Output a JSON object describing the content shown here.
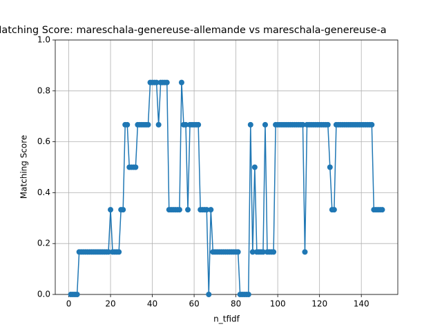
{
  "chart_data": {
    "type": "line",
    "title": "Matching Score: mareschala-genereuse-allemande vs mareschala-genereuse-a",
    "xlabel": "n_tfidf",
    "ylabel": "Matching Score",
    "x": [
      1,
      2,
      3,
      4,
      5,
      6,
      7,
      8,
      9,
      10,
      11,
      12,
      13,
      14,
      15,
      16,
      17,
      18,
      19,
      20,
      21,
      22,
      23,
      24,
      25,
      26,
      27,
      28,
      29,
      30,
      31,
      32,
      33,
      34,
      35,
      36,
      37,
      38,
      39,
      40,
      41,
      42,
      43,
      44,
      45,
      46,
      47,
      48,
      49,
      50,
      51,
      52,
      53,
      54,
      55,
      56,
      57,
      58,
      59,
      60,
      61,
      62,
      63,
      64,
      65,
      66,
      67,
      68,
      69,
      70,
      71,
      72,
      73,
      74,
      75,
      76,
      77,
      78,
      79,
      80,
      81,
      82,
      83,
      84,
      85,
      86,
      87,
      88,
      89,
      90,
      91,
      92,
      93,
      94,
      95,
      96,
      97,
      98,
      99,
      100,
      101,
      102,
      103,
      104,
      105,
      106,
      107,
      108,
      109,
      110,
      111,
      112,
      113,
      114,
      115,
      116,
      117,
      118,
      119,
      120,
      121,
      122,
      123,
      124,
      125,
      126,
      127,
      128,
      129,
      130,
      131,
      132,
      133,
      134,
      135,
      136,
      137,
      138,
      139,
      140,
      141,
      142,
      143,
      144,
      145,
      146,
      147,
      148,
      149,
      150
    ],
    "series": [
      {
        "color": "#1f77b4",
        "values": [
          0,
          0,
          0,
          0,
          0.167,
          0.167,
          0.167,
          0.167,
          0.167,
          0.167,
          0.167,
          0.167,
          0.167,
          0.167,
          0.167,
          0.167,
          0.167,
          0.167,
          0.167,
          0.333,
          0.167,
          0.167,
          0.167,
          0.167,
          0.333,
          0.333,
          0.667,
          0.667,
          0.5,
          0.5,
          0.5,
          0.5,
          0.667,
          0.667,
          0.667,
          0.667,
          0.667,
          0.667,
          0.833,
          0.833,
          0.833,
          0.833,
          0.667,
          0.833,
          0.833,
          0.833,
          0.833,
          0.333,
          0.333,
          0.333,
          0.333,
          0.333,
          0.333,
          0.833,
          0.667,
          0.667,
          0.333,
          0.667,
          0.667,
          0.667,
          0.667,
          0.667,
          0.333,
          0.333,
          0.333,
          0.333,
          0,
          0.333,
          0.167,
          0.167,
          0.167,
          0.167,
          0.167,
          0.167,
          0.167,
          0.167,
          0.167,
          0.167,
          0.167,
          0.167,
          0.167,
          0,
          0,
          0,
          0,
          0,
          0.667,
          0.167,
          0.5,
          0.167,
          0.167,
          0.167,
          0.167,
          0.667,
          0.167,
          0.167,
          0.167,
          0.167,
          0.667,
          0.667,
          0.667,
          0.667,
          0.667,
          0.667,
          0.667,
          0.667,
          0.667,
          0.667,
          0.667,
          0.667,
          0.667,
          0.667,
          0.167,
          0.667,
          0.667,
          0.667,
          0.667,
          0.667,
          0.667,
          0.667,
          0.667,
          0.667,
          0.667,
          0.667,
          0.5,
          0.333,
          0.333,
          0.667,
          0.667,
          0.667,
          0.667,
          0.667,
          0.667,
          0.667,
          0.667,
          0.667,
          0.667,
          0.667,
          0.667,
          0.667,
          0.667,
          0.667,
          0.667,
          0.667,
          0.667,
          0.333,
          0.333,
          0.333,
          0.333,
          0.333
        ]
      }
    ],
    "xlim": [
      -6.45,
      157.45
    ],
    "xticks": [
      0,
      20,
      40,
      60,
      80,
      100,
      120,
      140
    ],
    "ylim": [
      0,
      1
    ],
    "yticks": [
      {
        "value": 0,
        "label": "0.0"
      },
      {
        "value": 0.2,
        "label": "0.2"
      },
      {
        "value": 0.4,
        "label": "0.4"
      },
      {
        "value": 0.6,
        "label": "0.6"
      },
      {
        "value": 0.8,
        "label": "0.8"
      },
      {
        "value": 1,
        "label": "1.0"
      }
    ],
    "grid": true
  }
}
